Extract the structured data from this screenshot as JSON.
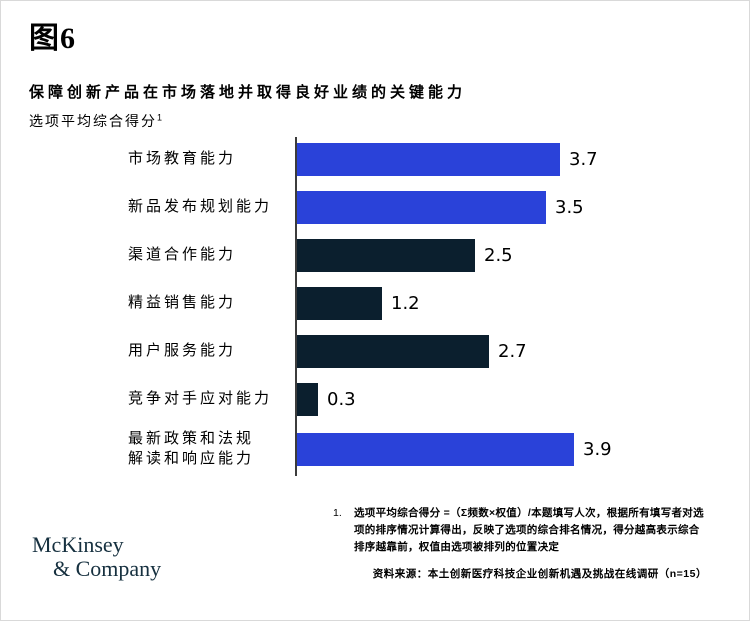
{
  "header": {
    "figure_label": "图6",
    "title": "保障创新产品在市场落地并取得良好业绩的关键能力",
    "axis_label": "选项平均综合得分",
    "axis_label_superscript": "1"
  },
  "chart_data": {
    "type": "bar",
    "orientation": "horizontal",
    "title": "保障创新产品在市场落地并取得良好业绩的关键能力",
    "xlabel": "选项平均综合得分",
    "xlim": [
      0,
      4.2
    ],
    "grid": false,
    "legend": false,
    "categories": [
      "市场教育能力",
      "新品发布规划能力",
      "渠道合作能力",
      "精益销售能力",
      "用户服务能力",
      "竞争对手应对能力",
      "最新政策和法规\n解读和响应能力"
    ],
    "values": [
      3.7,
      3.5,
      2.5,
      1.2,
      2.7,
      0.3,
      3.9
    ],
    "value_labels": [
      "3.7",
      "3.5",
      "2.5",
      "1.2",
      "2.7",
      "0.3",
      "3.9"
    ],
    "bar_colors": [
      "#2A42D9",
      "#2A42D9",
      "#0B1F2E",
      "#0B1F2E",
      "#0B1F2E",
      "#0B1F2E",
      "#2A42D9"
    ]
  },
  "footnote": {
    "marker": "1.",
    "text": "选项平均综合得分 =（Σ频数×权值）/本题填写人次，根据所有填写者对选项的排序情况计算得出，反映了选项的综合排名情况，得分越高表示综合排序越靠前，权值由选项被排列的位置决定"
  },
  "source": "资料来源：本土创新医疗科技企业创新机遇及挑战在线调研（n=15）",
  "logo": {
    "line1": "McKinsey",
    "line2": "& Company"
  },
  "colors": {
    "highlight_bar": "#2A42D9",
    "dark_bar": "#0B1F2E",
    "axis_line": "#3C3C3C",
    "logo_text": "#16303F",
    "text": "#000000"
  }
}
